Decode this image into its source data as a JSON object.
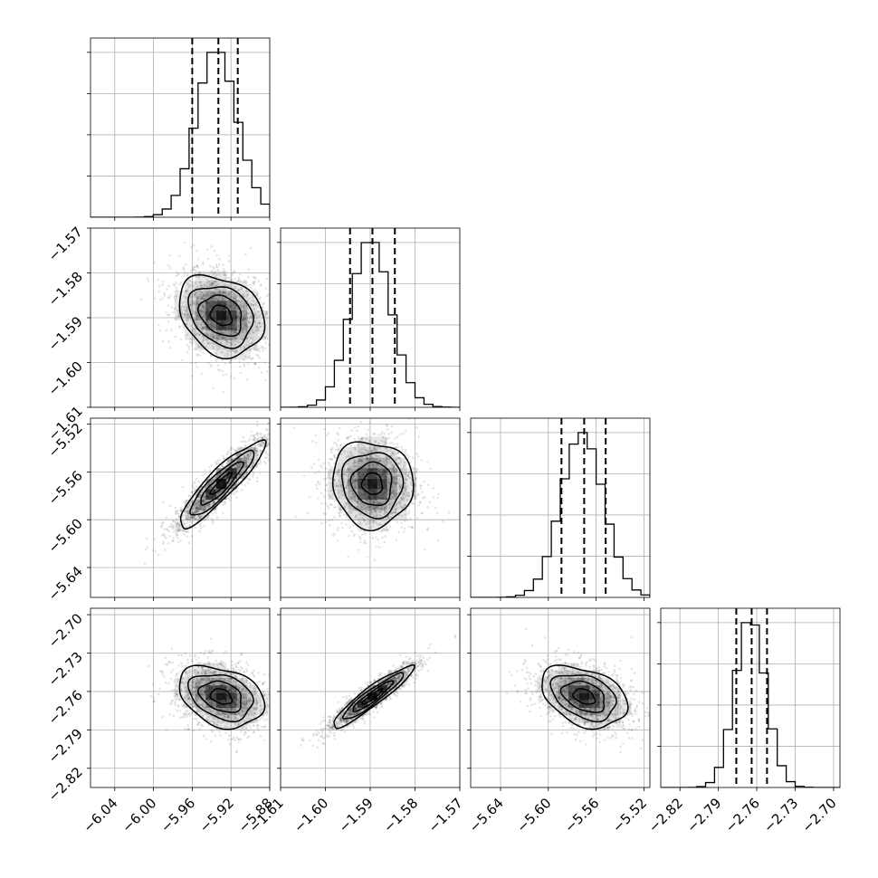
{
  "chart_data": {
    "type": "corner",
    "grid": true,
    "parameters": [
      {
        "mean": -5.93,
        "sd": 0.022,
        "lim": [
          -6.065,
          -5.88
        ],
        "ticks": [
          -6.04,
          -6.0,
          -5.96,
          -5.92,
          -5.88
        ],
        "tick_labels": [
          "−6.04",
          "−6.00",
          "−5.96",
          "−5.92",
          "−5.88"
        ],
        "quantiles": [
          -5.96,
          -5.933,
          -5.913
        ]
      },
      {
        "mean": -1.5895,
        "sd": 0.0045,
        "lim": [
          -1.61,
          -1.57
        ],
        "ticks": [
          -1.61,
          -1.6,
          -1.59,
          -1.58,
          -1.57
        ],
        "tick_labels": [
          "−1.61",
          "−1.60",
          "−1.59",
          "−1.58",
          "−1.57"
        ],
        "quantiles": [
          -1.5945,
          -1.5895,
          -1.5845
        ]
      },
      {
        "mean": -5.57,
        "sd": 0.018,
        "lim": [
          -5.665,
          -5.515
        ],
        "ticks": [
          -5.64,
          -5.6,
          -5.56,
          -5.52
        ],
        "tick_labels": [
          "−5.64",
          "−5.60",
          "−5.56",
          "−5.52"
        ],
        "quantiles": [
          -5.589,
          -5.57,
          -5.552
        ]
      },
      {
        "mean": -2.764,
        "sd": 0.012,
        "lim": [
          -2.835,
          -2.695
        ],
        "ticks": [
          -2.82,
          -2.79,
          -2.76,
          -2.73,
          -2.7
        ],
        "tick_labels": [
          "−2.82",
          "−2.79",
          "−2.76",
          "−2.73",
          "−2.70"
        ],
        "quantiles": [
          -2.776,
          -2.764,
          -2.752
        ]
      }
    ],
    "correlations": {
      "1,0": -0.25,
      "2,0": 0.9,
      "2,1": -0.05,
      "3,0": -0.3,
      "3,1": 0.93,
      "3,2": -0.35
    },
    "hist_bins": 20,
    "contour_levels": [
      0.5,
      1.0,
      1.5,
      2.0
    ],
    "colors": {
      "line": "#000000",
      "grid": "#b0b0b0",
      "points": "#000000"
    }
  }
}
